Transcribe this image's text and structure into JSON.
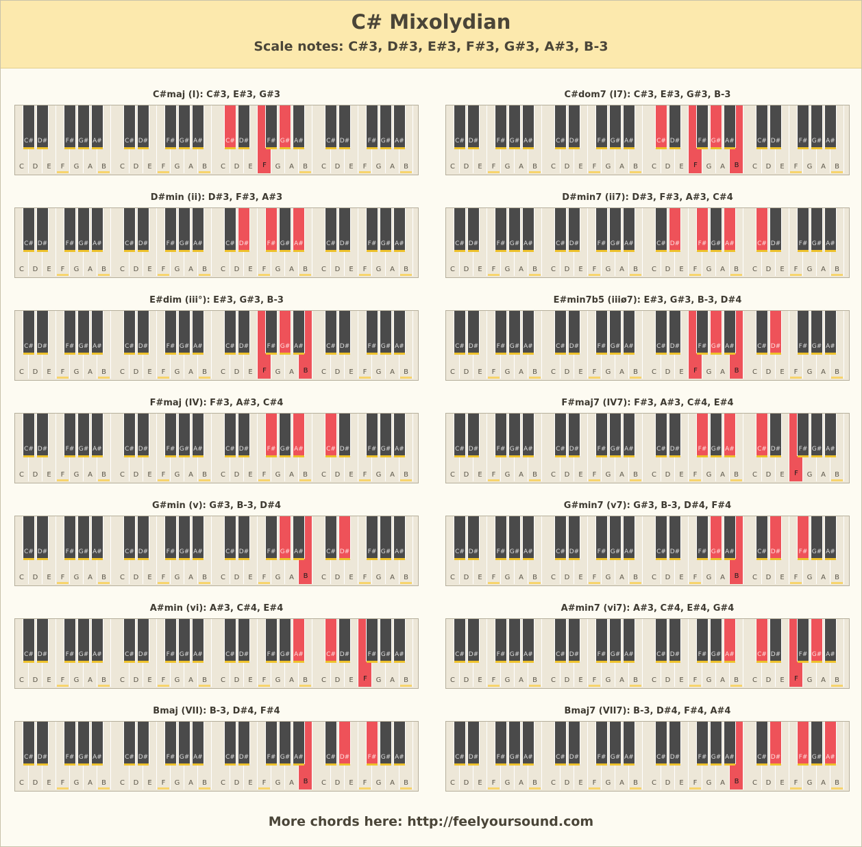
{
  "title": "C# Mixolydian",
  "subtitle": "Scale notes: C#3, D#3, E#3, F#3, G#3, A#3, B-3",
  "footer": "More chords here:  http://feelyoursound.com",
  "white_labels": [
    "C",
    "D",
    "E",
    "F",
    "G",
    "A",
    "B"
  ],
  "black_labels": [
    "C#",
    "D#",
    "F#",
    "G#",
    "A#"
  ],
  "scale_white": [
    "F",
    "B"
  ],
  "scale_black": [
    "C#",
    "D#",
    "F#",
    "G#",
    "A#"
  ],
  "colors": {
    "highlight": "#ee5259",
    "scale_marker": "#f7d46c",
    "header": "#fce9ad"
  },
  "chords": [
    {
      "title": "C#maj (I): C#3, E#3, G#3",
      "pressed": [
        {
          "oct": 2,
          "note": "C#"
        },
        {
          "oct": 2,
          "note": "F"
        },
        {
          "oct": 2,
          "note": "G#"
        }
      ]
    },
    {
      "title": "C#dom7 (I7): C#3, E#3, G#3, B-3",
      "pressed": [
        {
          "oct": 2,
          "note": "C#"
        },
        {
          "oct": 2,
          "note": "F"
        },
        {
          "oct": 2,
          "note": "G#"
        },
        {
          "oct": 2,
          "note": "B"
        }
      ]
    },
    {
      "title": "D#min (ii): D#3, F#3, A#3",
      "pressed": [
        {
          "oct": 2,
          "note": "D#"
        },
        {
          "oct": 2,
          "note": "F#"
        },
        {
          "oct": 2,
          "note": "A#"
        }
      ]
    },
    {
      "title": "D#min7 (ii7): D#3, F#3, A#3, C#4",
      "pressed": [
        {
          "oct": 2,
          "note": "D#"
        },
        {
          "oct": 2,
          "note": "F#"
        },
        {
          "oct": 2,
          "note": "A#"
        },
        {
          "oct": 3,
          "note": "C#"
        }
      ]
    },
    {
      "title": "E#dim (iii°): E#3, G#3, B-3",
      "pressed": [
        {
          "oct": 2,
          "note": "F"
        },
        {
          "oct": 2,
          "note": "G#"
        },
        {
          "oct": 2,
          "note": "B"
        }
      ]
    },
    {
      "title": "E#min7b5 (iiiø7): E#3, G#3, B-3, D#4",
      "pressed": [
        {
          "oct": 2,
          "note": "F"
        },
        {
          "oct": 2,
          "note": "G#"
        },
        {
          "oct": 2,
          "note": "B"
        },
        {
          "oct": 3,
          "note": "D#"
        }
      ]
    },
    {
      "title": "F#maj (IV): F#3, A#3, C#4",
      "pressed": [
        {
          "oct": 2,
          "note": "F#"
        },
        {
          "oct": 2,
          "note": "A#"
        },
        {
          "oct": 3,
          "note": "C#"
        }
      ]
    },
    {
      "title": "F#maj7 (IV7): F#3, A#3, C#4, E#4",
      "pressed": [
        {
          "oct": 2,
          "note": "F#"
        },
        {
          "oct": 2,
          "note": "A#"
        },
        {
          "oct": 3,
          "note": "C#"
        },
        {
          "oct": 3,
          "note": "F"
        }
      ]
    },
    {
      "title": "G#min (v): G#3, B-3, D#4",
      "pressed": [
        {
          "oct": 2,
          "note": "G#"
        },
        {
          "oct": 2,
          "note": "B"
        },
        {
          "oct": 3,
          "note": "D#"
        }
      ]
    },
    {
      "title": "G#min7 (v7): G#3, B-3, D#4, F#4",
      "pressed": [
        {
          "oct": 2,
          "note": "G#"
        },
        {
          "oct": 2,
          "note": "B"
        },
        {
          "oct": 3,
          "note": "D#"
        },
        {
          "oct": 3,
          "note": "F#"
        }
      ]
    },
    {
      "title": "A#min (vi): A#3, C#4, E#4",
      "pressed": [
        {
          "oct": 2,
          "note": "A#"
        },
        {
          "oct": 3,
          "note": "C#"
        },
        {
          "oct": 3,
          "note": "F"
        }
      ]
    },
    {
      "title": "A#min7 (vi7): A#3, C#4, E#4, G#4",
      "pressed": [
        {
          "oct": 2,
          "note": "A#"
        },
        {
          "oct": 3,
          "note": "C#"
        },
        {
          "oct": 3,
          "note": "F"
        },
        {
          "oct": 3,
          "note": "G#"
        }
      ]
    },
    {
      "title": "Bmaj (VII): B-3, D#4, F#4",
      "pressed": [
        {
          "oct": 2,
          "note": "B"
        },
        {
          "oct": 3,
          "note": "D#"
        },
        {
          "oct": 3,
          "note": "F#"
        }
      ]
    },
    {
      "title": "Bmaj7 (VII7): B-3, D#4, F#4, A#4",
      "pressed": [
        {
          "oct": 2,
          "note": "B"
        },
        {
          "oct": 3,
          "note": "D#"
        },
        {
          "oct": 3,
          "note": "F#"
        },
        {
          "oct": 3,
          "note": "A#"
        }
      ]
    }
  ]
}
